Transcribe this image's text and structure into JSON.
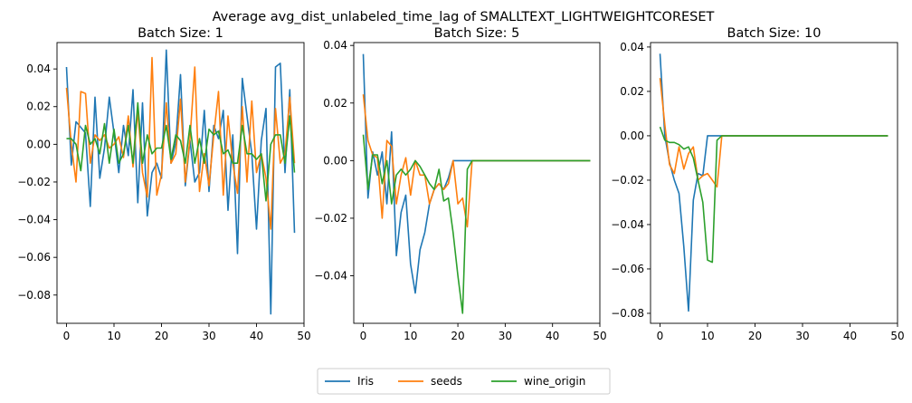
{
  "figure": {
    "suptitle": "Average avg_dist_unlabeled_time_lag of SMALLTEXT_LIGHTWEIGHTCORESET"
  },
  "legend": {
    "placement": "bottom-center",
    "entries": [
      {
        "name": "Iris",
        "color": "#1f77b4"
      },
      {
        "name": "seeds",
        "color": "#ff7f0e"
      },
      {
        "name": "wine_origin",
        "color": "#2ca02c"
      }
    ]
  },
  "chart_data": [
    {
      "type": "line",
      "title": "Batch Size: 1",
      "xlim": [
        -2,
        50
      ],
      "ylim": [
        -0.095,
        0.054
      ],
      "xticks": [
        0,
        10,
        20,
        30,
        40,
        50
      ],
      "yticks": [
        -0.08,
        -0.06,
        -0.04,
        -0.02,
        0.0,
        0.02,
        0.04
      ],
      "ytick_labels": [
        "−0.08",
        "−0.06",
        "−0.04",
        "−0.02",
        "0.00",
        "0.02",
        "0.04"
      ],
      "grid": false,
      "series": [
        {
          "name": "Iris",
          "color": "#1f77b4",
          "x": [
            0,
            1,
            2,
            3,
            4,
            5,
            6,
            7,
            8,
            9,
            10,
            11,
            12,
            13,
            14,
            15,
            16,
            17,
            18,
            19,
            20,
            21,
            22,
            23,
            24,
            25,
            26,
            27,
            28,
            29,
            30,
            31,
            32,
            33,
            34,
            35,
            36,
            37,
            38,
            39,
            40,
            41,
            42,
            43,
            44,
            45,
            46,
            47,
            48
          ],
          "y": [
            0.041,
            -0.011,
            0.012,
            0.009,
            0.006,
            -0.033,
            0.025,
            -0.018,
            -0.002,
            0.025,
            0.006,
            -0.015,
            0.01,
            -0.006,
            0.029,
            -0.031,
            0.022,
            -0.038,
            -0.015,
            -0.01,
            -0.018,
            0.05,
            -0.01,
            0.001,
            0.037,
            -0.022,
            0.002,
            -0.02,
            -0.015,
            0.018,
            -0.025,
            0.01,
            0.003,
            0.018,
            -0.035,
            0.005,
            -0.058,
            0.035,
            0.015,
            -0.005,
            -0.045,
            0.002,
            0.019,
            -0.09,
            0.041,
            0.043,
            -0.015,
            0.029,
            -0.047
          ]
        },
        {
          "name": "seeds",
          "color": "#ff7f0e",
          "x": [
            0,
            1,
            2,
            3,
            4,
            5,
            6,
            7,
            8,
            9,
            10,
            11,
            12,
            13,
            14,
            15,
            16,
            17,
            18,
            19,
            20,
            21,
            22,
            23,
            24,
            25,
            26,
            27,
            28,
            29,
            30,
            31,
            32,
            33,
            34,
            35,
            36,
            37,
            38,
            39,
            40,
            41,
            42,
            43,
            44,
            45,
            46,
            47,
            48
          ],
          "y": [
            0.03,
            0.0,
            -0.02,
            0.028,
            0.027,
            -0.01,
            0.005,
            0.002,
            0.005,
            -0.002,
            0.0,
            0.004,
            -0.007,
            0.015,
            -0.012,
            0.018,
            -0.015,
            -0.028,
            0.046,
            -0.027,
            -0.016,
            0.022,
            -0.01,
            -0.005,
            0.024,
            -0.02,
            0.003,
            0.041,
            -0.025,
            -0.005,
            -0.022,
            0.005,
            0.028,
            -0.027,
            0.015,
            -0.01,
            -0.026,
            0.02,
            -0.02,
            0.023,
            -0.015,
            -0.005,
            -0.018,
            -0.045,
            0.019,
            -0.01,
            -0.005,
            0.025,
            -0.01
          ]
        },
        {
          "name": "wine_origin",
          "color": "#2ca02c",
          "x": [
            0,
            1,
            2,
            3,
            4,
            5,
            6,
            7,
            8,
            9,
            10,
            11,
            12,
            13,
            14,
            15,
            16,
            17,
            18,
            19,
            20,
            21,
            22,
            23,
            24,
            25,
            26,
            27,
            28,
            29,
            30,
            31,
            32,
            33,
            34,
            35,
            36,
            37,
            38,
            39,
            40,
            41,
            42,
            43,
            44,
            45,
            46,
            47,
            48
          ],
          "y": [
            0.003,
            0.003,
            0.0,
            -0.014,
            0.01,
            0.0,
            0.003,
            -0.005,
            0.011,
            -0.01,
            0.008,
            -0.01,
            -0.005,
            0.01,
            -0.01,
            0.022,
            -0.01,
            0.005,
            -0.005,
            -0.002,
            -0.002,
            0.01,
            -0.008,
            0.005,
            0.002,
            -0.01,
            0.01,
            -0.01,
            0.003,
            -0.01,
            0.008,
            0.005,
            0.007,
            -0.005,
            -0.003,
            -0.01,
            -0.01,
            0.01,
            -0.005,
            -0.005,
            -0.008,
            -0.005,
            -0.03,
            0.0,
            0.005,
            0.005,
            -0.01,
            0.015,
            -0.015
          ]
        }
      ]
    },
    {
      "type": "line",
      "title": "Batch Size: 5",
      "xlim": [
        -2,
        50
      ],
      "ylim": [
        -0.0565,
        0.041
      ],
      "xticks": [
        0,
        10,
        20,
        30,
        40,
        50
      ],
      "yticks": [
        -0.04,
        -0.02,
        0.0,
        0.02,
        0.04
      ],
      "ytick_labels": [
        "−0.04",
        "−0.02",
        "0.00",
        "0.02",
        "0.04"
      ],
      "grid": false,
      "series": [
        {
          "name": "Iris",
          "color": "#1f77b4",
          "x": [
            0,
            1,
            2,
            3,
            4,
            5,
            6,
            7,
            8,
            9,
            10,
            11,
            12,
            13,
            14,
            15,
            16,
            17,
            18,
            19,
            20,
            21,
            22,
            23,
            24,
            25,
            26,
            27,
            28,
            29,
            30,
            31,
            32,
            33,
            34,
            35,
            36,
            37,
            38,
            39,
            40,
            41,
            42,
            43,
            44,
            45,
            46,
            47,
            48
          ],
          "y": [
            0.037,
            -0.013,
            0.003,
            -0.005,
            0.003,
            -0.015,
            0.01,
            -0.033,
            -0.018,
            -0.012,
            -0.036,
            -0.046,
            -0.031,
            -0.025,
            -0.015,
            -0.01,
            -0.008,
            -0.01,
            -0.006,
            0.0,
            0.0,
            0.0,
            0.0,
            0.0,
            0.0,
            0.0,
            0.0,
            0.0,
            0.0,
            0.0,
            0.0,
            0.0,
            0.0,
            0.0,
            0.0,
            0.0,
            0.0,
            0.0,
            0.0,
            0.0,
            0.0,
            0.0,
            0.0,
            0.0,
            0.0,
            0.0,
            0.0,
            0.0,
            0.0
          ]
        },
        {
          "name": "seeds",
          "color": "#ff7f0e",
          "x": [
            0,
            1,
            2,
            3,
            4,
            5,
            6,
            7,
            8,
            9,
            10,
            11,
            12,
            13,
            14,
            15,
            16,
            17,
            18,
            19,
            20,
            21,
            22,
            23,
            24,
            25,
            26,
            27,
            28,
            29,
            30,
            31,
            32,
            33,
            34,
            35,
            36,
            37,
            38,
            39,
            40,
            41,
            42,
            43,
            44,
            45,
            46,
            47,
            48
          ],
          "y": [
            0.023,
            0.007,
            0.002,
            0.001,
            -0.02,
            0.007,
            0.005,
            -0.015,
            -0.005,
            0.001,
            -0.012,
            0.0,
            -0.005,
            -0.005,
            -0.015,
            -0.01,
            -0.008,
            -0.01,
            -0.008,
            0.0,
            -0.015,
            -0.013,
            -0.023,
            0.0,
            0.0,
            0.0,
            0.0,
            0.0,
            0.0,
            0.0,
            0.0,
            0.0,
            0.0,
            0.0,
            0.0,
            0.0,
            0.0,
            0.0,
            0.0,
            0.0,
            0.0,
            0.0,
            0.0,
            0.0,
            0.0,
            0.0,
            0.0,
            0.0,
            0.0
          ]
        },
        {
          "name": "wine_origin",
          "color": "#2ca02c",
          "x": [
            0,
            1,
            2,
            3,
            4,
            5,
            6,
            7,
            8,
            9,
            10,
            11,
            12,
            13,
            14,
            15,
            16,
            17,
            18,
            19,
            20,
            21,
            22,
            23,
            24,
            25,
            26,
            27,
            28,
            29,
            30,
            31,
            32,
            33,
            34,
            35,
            36,
            37,
            38,
            39,
            40,
            41,
            42,
            43,
            44,
            45,
            46,
            47,
            48
          ],
          "y": [
            0.009,
            -0.01,
            0.002,
            0.002,
            -0.008,
            0.0,
            -0.015,
            -0.005,
            -0.003,
            -0.005,
            -0.003,
            0.0,
            -0.002,
            -0.005,
            -0.008,
            -0.01,
            -0.003,
            -0.014,
            -0.013,
            -0.025,
            -0.04,
            -0.053,
            -0.003,
            0.0,
            0.0,
            0.0,
            0.0,
            0.0,
            0.0,
            0.0,
            0.0,
            0.0,
            0.0,
            0.0,
            0.0,
            0.0,
            0.0,
            0.0,
            0.0,
            0.0,
            0.0,
            0.0,
            0.0,
            0.0,
            0.0,
            0.0,
            0.0,
            0.0,
            0.0
          ]
        }
      ]
    },
    {
      "type": "line",
      "title": "Batch Size: 10",
      "xlim": [
        -2,
        50
      ],
      "ylim": [
        -0.0845,
        0.042
      ],
      "xticks": [
        0,
        10,
        20,
        30,
        40,
        50
      ],
      "yticks": [
        -0.08,
        -0.06,
        -0.04,
        -0.02,
        0.0,
        0.02,
        0.04
      ],
      "ytick_labels": [
        "−0.08",
        "−0.06",
        "−0.04",
        "−0.02",
        "0.00",
        "0.02",
        "0.04"
      ],
      "grid": false,
      "series": [
        {
          "name": "Iris",
          "color": "#1f77b4",
          "x": [
            0,
            1,
            2,
            3,
            4,
            5,
            6,
            7,
            8,
            9,
            10,
            11,
            12,
            13,
            14,
            15,
            16,
            17,
            18,
            19,
            20,
            21,
            22,
            23,
            24,
            25,
            26,
            27,
            28,
            29,
            30,
            31,
            32,
            33,
            34,
            35,
            36,
            37,
            38,
            39,
            40,
            41,
            42,
            43,
            44,
            45,
            46,
            47,
            48
          ],
          "y": [
            0.037,
            0.0,
            -0.012,
            -0.02,
            -0.026,
            -0.05,
            -0.079,
            -0.029,
            -0.017,
            -0.018,
            0.0,
            0.0,
            0.0,
            0.0,
            0.0,
            0.0,
            0.0,
            0.0,
            0.0,
            0.0,
            0.0,
            0.0,
            0.0,
            0.0,
            0.0,
            0.0,
            0.0,
            0.0,
            0.0,
            0.0,
            0.0,
            0.0,
            0.0,
            0.0,
            0.0,
            0.0,
            0.0,
            0.0,
            0.0,
            0.0,
            0.0,
            0.0,
            0.0,
            0.0,
            0.0,
            0.0,
            0.0,
            0.0,
            0.0
          ]
        },
        {
          "name": "seeds",
          "color": "#ff7f0e",
          "x": [
            0,
            1,
            2,
            3,
            4,
            5,
            6,
            7,
            8,
            9,
            10,
            11,
            12,
            13,
            14,
            15,
            16,
            17,
            18,
            19,
            20,
            21,
            22,
            23,
            24,
            25,
            26,
            27,
            28,
            29,
            30,
            31,
            32,
            33,
            34,
            35,
            36,
            37,
            38,
            39,
            40,
            41,
            42,
            43,
            44,
            45,
            46,
            47,
            48
          ],
          "y": [
            0.026,
            0.005,
            -0.013,
            -0.017,
            -0.005,
            -0.015,
            -0.008,
            -0.005,
            -0.02,
            -0.018,
            -0.017,
            -0.02,
            -0.023,
            0.0,
            0.0,
            0.0,
            0.0,
            0.0,
            0.0,
            0.0,
            0.0,
            0.0,
            0.0,
            0.0,
            0.0,
            0.0,
            0.0,
            0.0,
            0.0,
            0.0,
            0.0,
            0.0,
            0.0,
            0.0,
            0.0,
            0.0,
            0.0,
            0.0,
            0.0,
            0.0,
            0.0,
            0.0,
            0.0,
            0.0,
            0.0,
            0.0,
            0.0,
            0.0,
            0.0
          ]
        },
        {
          "name": "wine_origin",
          "color": "#2ca02c",
          "x": [
            0,
            1,
            2,
            3,
            4,
            5,
            6,
            7,
            8,
            9,
            10,
            11,
            12,
            13,
            14,
            15,
            16,
            17,
            18,
            19,
            20,
            21,
            22,
            23,
            24,
            25,
            26,
            27,
            28,
            29,
            30,
            31,
            32,
            33,
            34,
            35,
            36,
            37,
            38,
            39,
            40,
            41,
            42,
            43,
            44,
            45,
            46,
            47,
            48
          ],
          "y": [
            0.004,
            -0.002,
            -0.003,
            -0.003,
            -0.004,
            -0.006,
            -0.005,
            -0.01,
            -0.02,
            -0.03,
            -0.056,
            -0.057,
            -0.002,
            0.0,
            0.0,
            0.0,
            0.0,
            0.0,
            0.0,
            0.0,
            0.0,
            0.0,
            0.0,
            0.0,
            0.0,
            0.0,
            0.0,
            0.0,
            0.0,
            0.0,
            0.0,
            0.0,
            0.0,
            0.0,
            0.0,
            0.0,
            0.0,
            0.0,
            0.0,
            0.0,
            0.0,
            0.0,
            0.0,
            0.0,
            0.0,
            0.0,
            0.0,
            0.0,
            0.0
          ]
        }
      ]
    }
  ]
}
